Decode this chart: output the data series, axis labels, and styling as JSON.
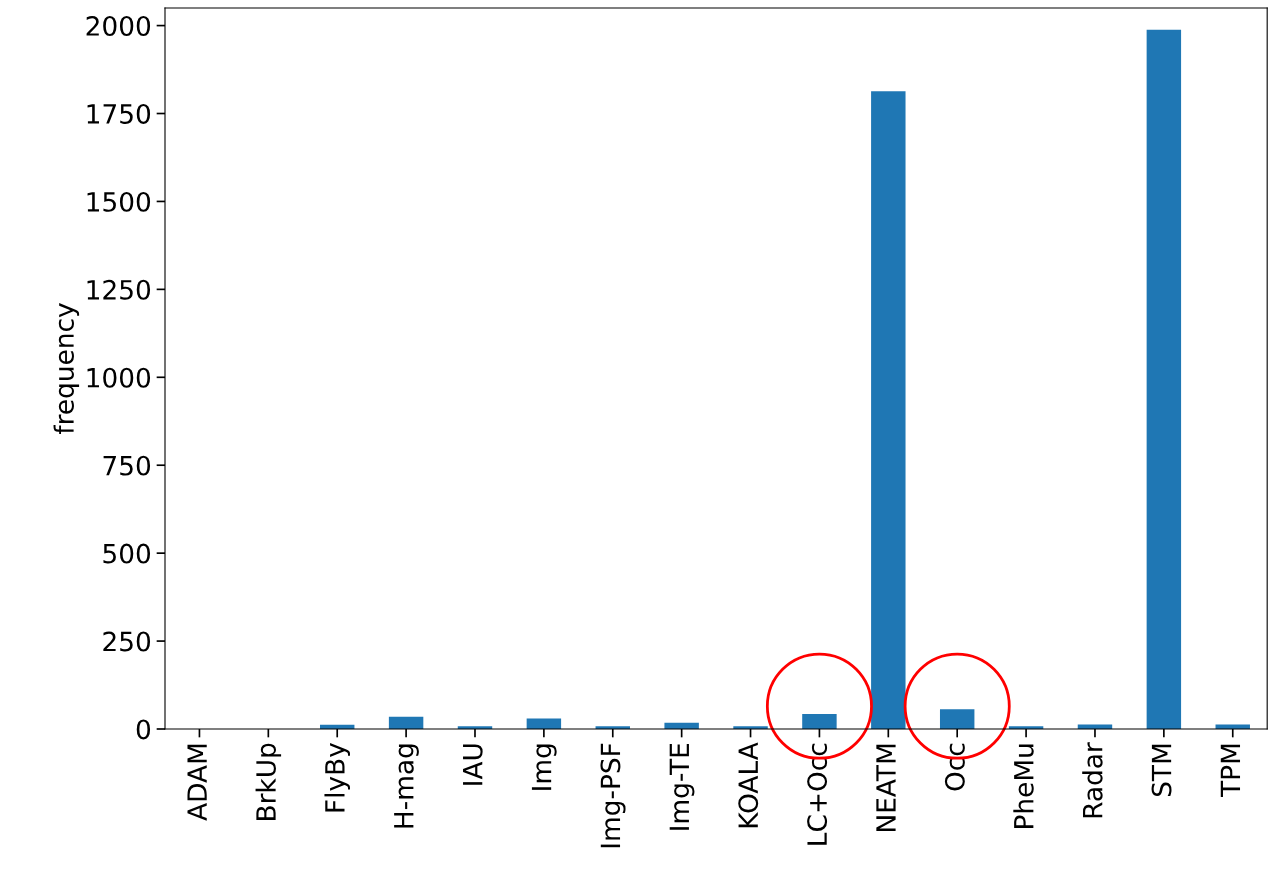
{
  "chart_data": {
    "type": "bar",
    "ylabel": "frequency",
    "categories": [
      "ADAM",
      "BrkUp",
      "FlyBy",
      "H-mag",
      "IAU",
      "Img",
      "Img-PSF",
      "Img-TE",
      "KOALA",
      "LC+Occ",
      "NEATM",
      "Occ",
      "PheMu",
      "Radar",
      "STM",
      "TPM"
    ],
    "values": [
      null,
      null,
      12,
      35,
      8,
      30,
      8,
      18,
      8,
      43,
      1813,
      56,
      8,
      13,
      1988,
      13
    ],
    "color": "#1f77b4",
    "ylim": [
      0,
      2050
    ],
    "yticks": [
      0,
      250,
      500,
      750,
      1000,
      1250,
      1500,
      1750,
      2000
    ],
    "grid": false
  }
}
